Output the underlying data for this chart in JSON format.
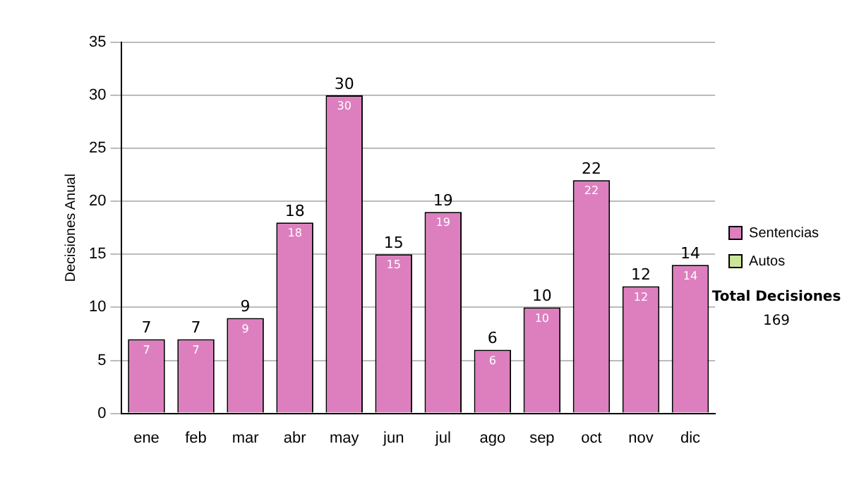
{
  "chart_data": {
    "type": "bar",
    "ylabel": "Decisiones Anual",
    "stacked": true,
    "categories": [
      "ene",
      "feb",
      "mar",
      "abr",
      "may",
      "jun",
      "jul",
      "ago",
      "sep",
      "oct",
      "nov",
      "dic"
    ],
    "series": [
      {
        "name": "Sentencias",
        "color": "#dd7fbf",
        "values": [
          7,
          7,
          9,
          18,
          30,
          15,
          19,
          6,
          10,
          22,
          12,
          14
        ]
      },
      {
        "name": "Autos",
        "color": "#cce699",
        "values": [
          null,
          null,
          null,
          null,
          null,
          null,
          null,
          null,
          null,
          null,
          null,
          null
        ]
      }
    ],
    "totals": [
      "7",
      "7",
      "9",
      "18",
      "30",
      "15",
      "19",
      "6",
      "10",
      "22",
      "12",
      "14"
    ],
    "data_labels": true,
    "ylim": [
      0,
      35
    ],
    "yticks": [
      0,
      5,
      10,
      15,
      20,
      25,
      30,
      35
    ],
    "grid": "y",
    "legend": "right",
    "annotations": [
      "Total Decisiones",
      "169"
    ]
  }
}
